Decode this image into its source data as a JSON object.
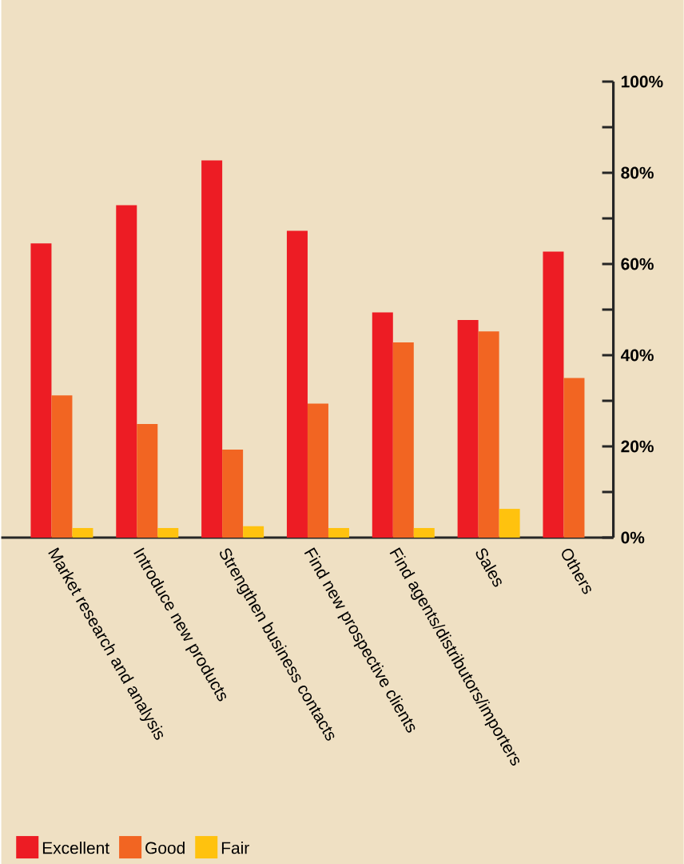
{
  "chart_data": {
    "type": "bar",
    "categories": [
      "Market research and analysis",
      "Introduce new products",
      "Strengthen business contacts",
      "Find new prospective clients",
      "Find agents/distributors/importers",
      "Sales",
      "Others"
    ],
    "series": [
      {
        "name": "Excellent",
        "color": "#ed1c24",
        "values": [
          64.5,
          72.9,
          82.7,
          67.3,
          49.4,
          47.7,
          62.7
        ]
      },
      {
        "name": "Good",
        "color": "#f26522",
        "values": [
          31.2,
          24.9,
          19.3,
          29.4,
          42.8,
          45.2,
          35.0
        ]
      },
      {
        "name": "Fair",
        "color": "#ffc20e",
        "values": [
          2.1,
          2.1,
          2.5,
          2.1,
          2.1,
          6.3,
          null
        ]
      }
    ],
    "ylim": [
      0,
      100
    ],
    "yticks": [
      {
        "value": 0,
        "label": "0%"
      },
      {
        "value": 10,
        "label": null
      },
      {
        "value": 20,
        "label": "20%"
      },
      {
        "value": 30,
        "label": null
      },
      {
        "value": 40,
        "label": "40%"
      },
      {
        "value": 50,
        "label": null
      },
      {
        "value": 60,
        "label": "60%"
      },
      {
        "value": 70,
        "label": null
      },
      {
        "value": 80,
        "label": "80%"
      },
      {
        "value": 90,
        "label": null
      },
      {
        "value": 100,
        "label": "100%"
      }
    ],
    "grid": false,
    "legend": "bottom left"
  }
}
